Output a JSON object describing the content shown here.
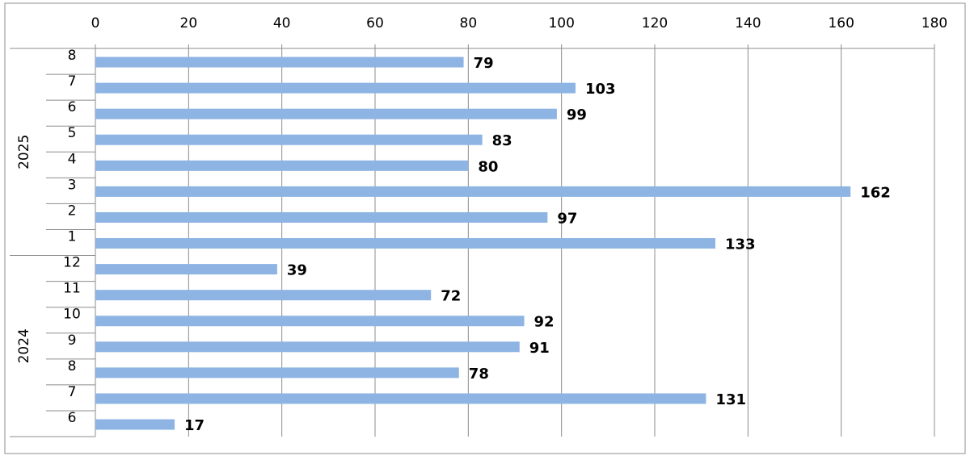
{
  "chart_data": {
    "type": "bar",
    "orientation": "horizontal",
    "title": "",
    "xlabel": "",
    "ylabel": "",
    "xlim": [
      0,
      180
    ],
    "x_ticks": [
      0,
      20,
      40,
      60,
      80,
      100,
      120,
      140,
      160,
      180
    ],
    "x_axis_position": "top",
    "grid": true,
    "legend": "none",
    "bar_color": "#8EB4E3",
    "groups": [
      {
        "name": "2025",
        "categories": [
          "8",
          "7",
          "6",
          "5",
          "4",
          "3",
          "2",
          "1"
        ],
        "values": [
          79,
          103,
          99,
          83,
          80,
          162,
          97,
          133
        ]
      },
      {
        "name": "2024",
        "categories": [
          "12",
          "11",
          "10",
          "9",
          "8",
          "7",
          "6"
        ],
        "values": [
          39,
          72,
          92,
          91,
          78,
          131,
          17
        ]
      }
    ]
  }
}
